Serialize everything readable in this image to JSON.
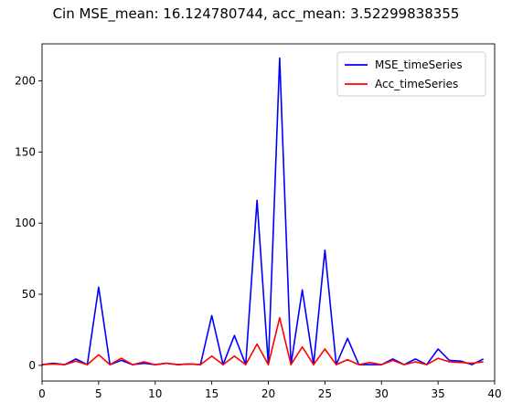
{
  "chart_data": {
    "type": "line",
    "title": "Cin MSE_mean: 16.124780744, acc_mean: 3.52299838355",
    "xlabel": "",
    "ylabel": "",
    "xlim": [
      0,
      40
    ],
    "ylim": [
      -11,
      226
    ],
    "xticks": [
      0,
      5,
      10,
      15,
      20,
      25,
      30,
      35,
      40
    ],
    "yticks": [
      0,
      50,
      100,
      150,
      200
    ],
    "grid": false,
    "legend_position": "top-right",
    "x": [
      0,
      1,
      2,
      3,
      4,
      5,
      6,
      7,
      8,
      9,
      10,
      11,
      12,
      13,
      14,
      15,
      16,
      17,
      18,
      19,
      20,
      21,
      22,
      23,
      24,
      25,
      26,
      27,
      28,
      29,
      30,
      31,
      32,
      33,
      34,
      35,
      36,
      37,
      38,
      39
    ],
    "series": [
      {
        "name": "MSE_timeSeries",
        "color": "#0000ff",
        "values": [
          0.5,
          1.5,
          0.5,
          4.5,
          0.5,
          55,
          0.5,
          3.5,
          0.5,
          1.5,
          0.5,
          1.5,
          0.5,
          1,
          0.5,
          35,
          0.5,
          21,
          0.5,
          116,
          0.5,
          216,
          0.5,
          53,
          0.5,
          81,
          0.5,
          19,
          0.5,
          0.5,
          0.5,
          4.5,
          0.5,
          4.5,
          0.5,
          11.5,
          3.5,
          3,
          0.5,
          4.5
        ]
      },
      {
        "name": "Acc_timeSeries",
        "color": "#ff0000",
        "values": [
          0.5,
          1,
          0.5,
          3,
          0.5,
          7.5,
          0.5,
          5,
          0.5,
          2.5,
          0.5,
          1.5,
          0.5,
          1,
          0.5,
          6.5,
          0.5,
          6.5,
          0.5,
          15,
          0.5,
          33.5,
          0.5,
          13,
          0.5,
          11.5,
          0.5,
          4,
          0.5,
          2,
          0.5,
          3.5,
          0.5,
          2.5,
          0.5,
          5,
          2.5,
          2,
          1.5,
          2.5
        ]
      }
    ]
  }
}
